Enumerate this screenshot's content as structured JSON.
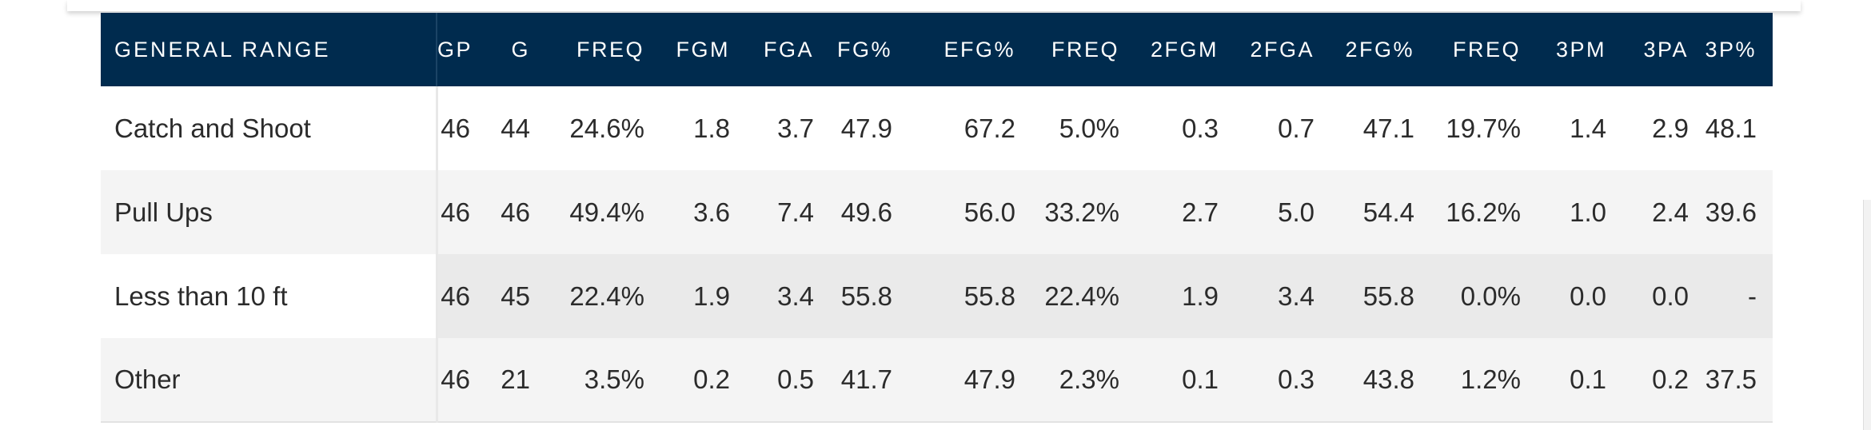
{
  "table": {
    "columns": [
      "GENERAL RANGE",
      "GP",
      "G",
      "FREQ",
      "FGM",
      "FGA",
      "FG%",
      "EFG%",
      "FREQ",
      "2FGM",
      "2FGA",
      "2FG%",
      "FREQ",
      "3PM",
      "3PA",
      "3P%"
    ],
    "rows": [
      {
        "range": "Catch and Shoot",
        "values": [
          "46",
          "44",
          "24.6%",
          "1.8",
          "3.7",
          "47.9",
          "67.2",
          "5.0%",
          "0.3",
          "0.7",
          "47.1",
          "19.7%",
          "1.4",
          "2.9",
          "48.1"
        ]
      },
      {
        "range": "Pull Ups",
        "values": [
          "46",
          "46",
          "49.4%",
          "3.6",
          "7.4",
          "49.6",
          "56.0",
          "33.2%",
          "2.7",
          "5.0",
          "54.4",
          "16.2%",
          "1.0",
          "2.4",
          "39.6"
        ]
      },
      {
        "range": "Less than 10 ft",
        "values": [
          "46",
          "45",
          "22.4%",
          "1.9",
          "3.4",
          "55.8",
          "55.8",
          "22.4%",
          "1.9",
          "3.4",
          "55.8",
          "0.0%",
          "0.0",
          "0.0",
          "-"
        ]
      },
      {
        "range": "Other",
        "values": [
          "46",
          "21",
          "3.5%",
          "0.2",
          "0.5",
          "41.7",
          "47.9",
          "2.3%",
          "0.1",
          "0.3",
          "43.8",
          "1.2%",
          "0.1",
          "0.2",
          "37.5"
        ]
      }
    ]
  },
  "colors": {
    "header_bg": "#002b4e",
    "header_text": "#ffffff",
    "row_alt_bg": "#f4f4f4",
    "row_selected_bg": "#eaeaea"
  }
}
